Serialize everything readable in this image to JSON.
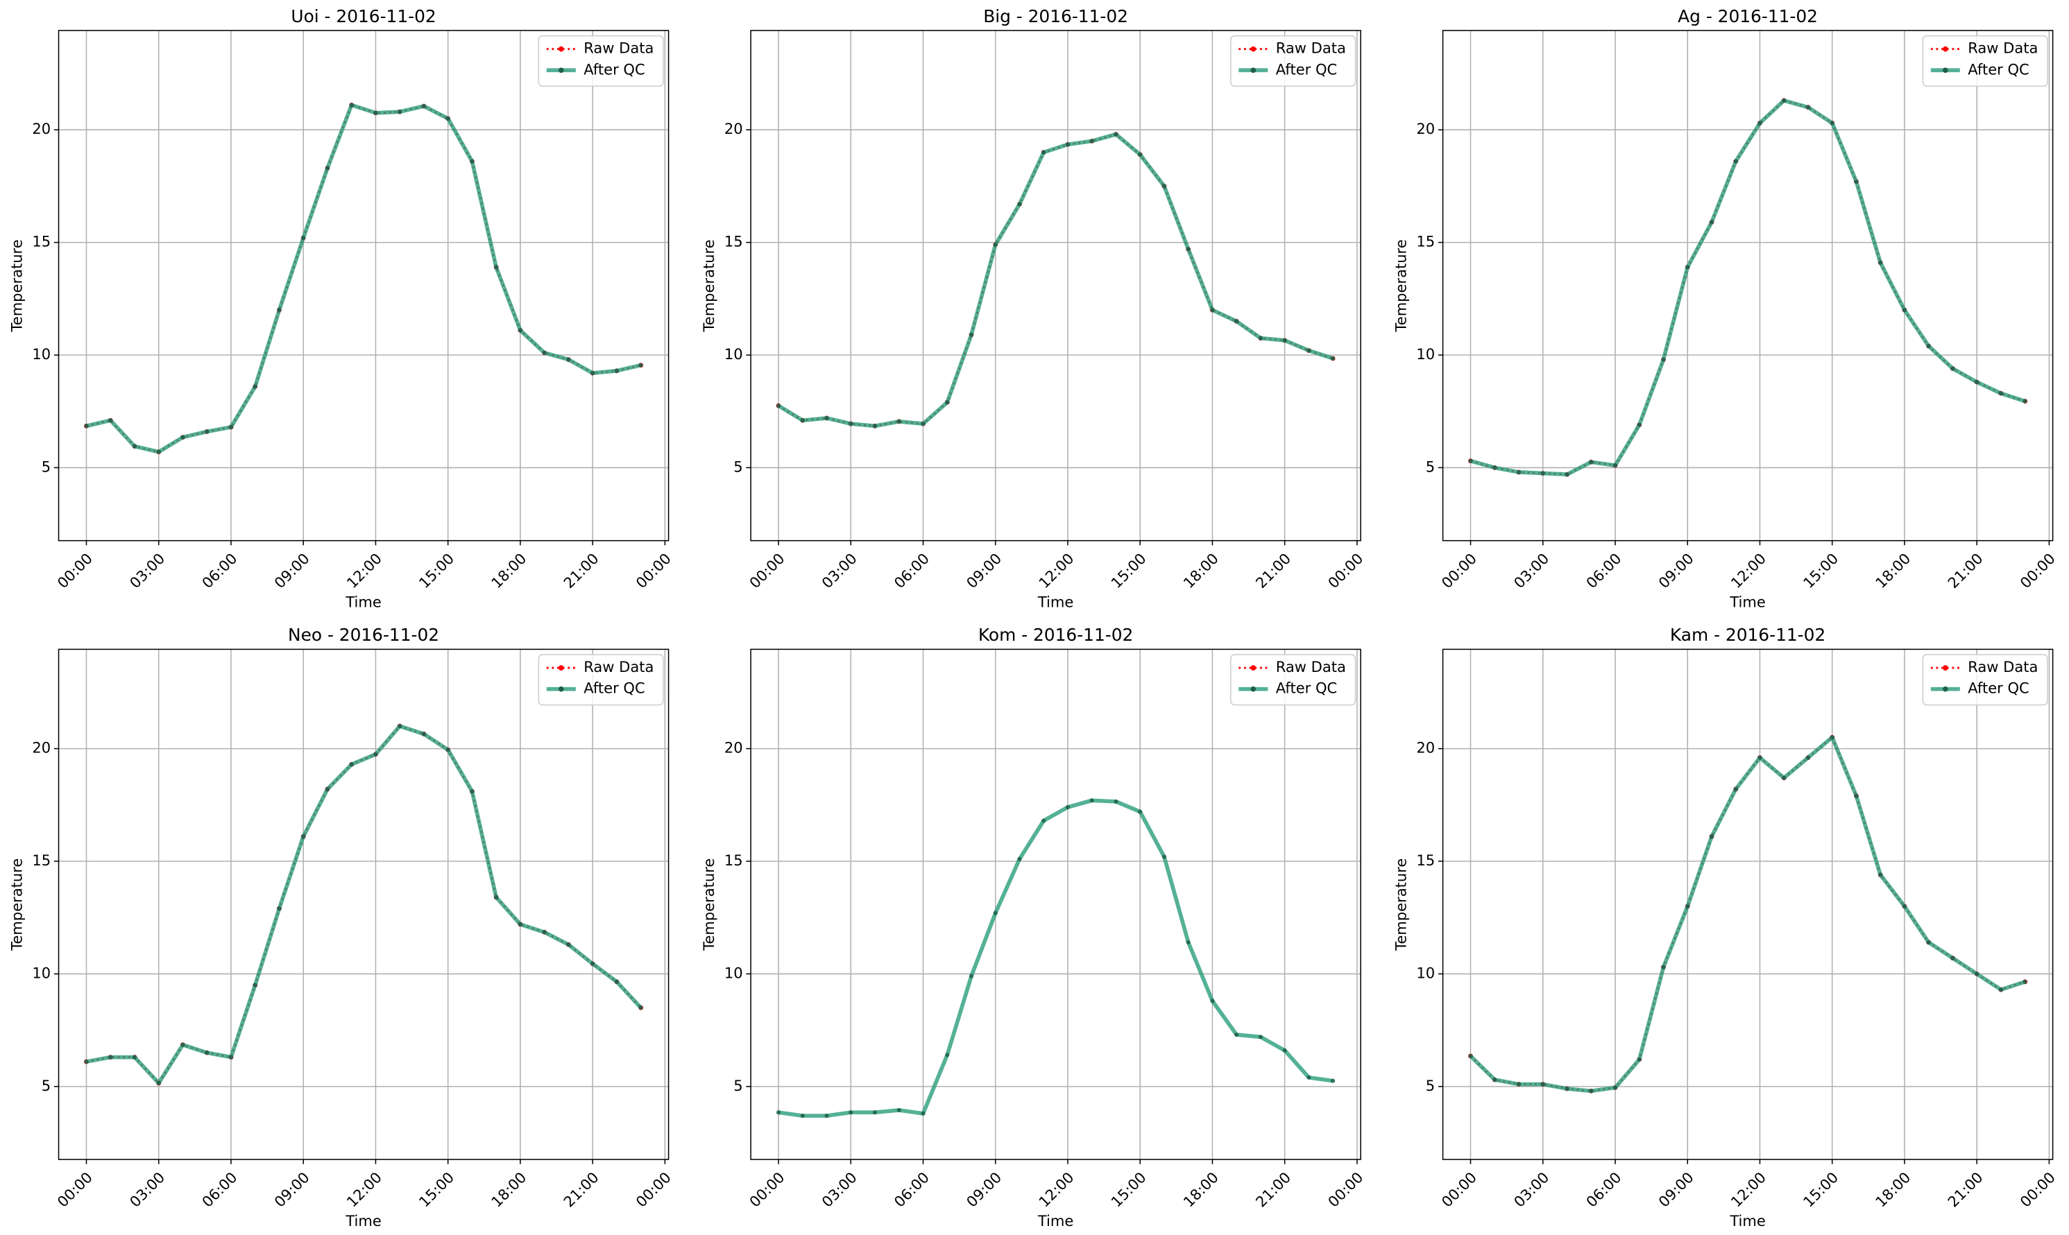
{
  "chart_data": [
    {
      "type": "line",
      "title": "Uoi - 2016-11-02",
      "xlabel": "Time",
      "ylabel": "Temperature",
      "x": [
        0,
        1,
        2,
        3,
        4,
        5,
        6,
        7,
        8,
        9,
        10,
        11,
        12,
        13,
        14,
        15,
        16,
        17,
        18,
        19,
        20,
        21,
        22,
        23
      ],
      "xlim": [
        -1.15,
        24.15
      ],
      "xticks": [
        {
          "value": 0,
          "label": "00:00"
        },
        {
          "value": 3,
          "label": "03:00"
        },
        {
          "value": 6,
          "label": "06:00"
        },
        {
          "value": 9,
          "label": "09:00"
        },
        {
          "value": 12,
          "label": "12:00"
        },
        {
          "value": 15,
          "label": "15:00"
        },
        {
          "value": 18,
          "label": "18:00"
        },
        {
          "value": 21,
          "label": "21:00"
        },
        {
          "value": 24,
          "label": "00:00"
        }
      ],
      "ylim": [
        1.76,
        24.41
      ],
      "yticks": [
        5,
        10,
        15,
        20
      ],
      "grid": true,
      "legend": "upper right",
      "series": [
        {
          "name": "Raw Data",
          "color": "#ff0000",
          "values": [
            6.85,
            7.1,
            5.95,
            5.7,
            6.35,
            6.6,
            6.8,
            8.6,
            12.0,
            15.2,
            18.3,
            21.1,
            20.75,
            20.8,
            21.05,
            20.5,
            18.6,
            13.9,
            11.1,
            10.1,
            9.8,
            9.2,
            9.3,
            9.55
          ]
        },
        {
          "name": "After QC",
          "color": "#2a9d7c",
          "values": [
            6.85,
            7.1,
            5.95,
            5.7,
            6.35,
            6.6,
            6.8,
            8.6,
            12.0,
            15.2,
            18.3,
            21.1,
            20.75,
            20.8,
            21.05,
            20.5,
            18.6,
            13.9,
            11.1,
            10.1,
            9.8,
            9.2,
            9.3,
            9.55
          ]
        }
      ]
    },
    {
      "type": "line",
      "title": "Big - 2016-11-02",
      "xlabel": "Time",
      "ylabel": "Temperature",
      "x": [
        0,
        1,
        2,
        3,
        4,
        5,
        6,
        7,
        8,
        9,
        10,
        11,
        12,
        13,
        14,
        15,
        16,
        17,
        18,
        19,
        20,
        21,
        22,
        23
      ],
      "xlim": [
        -1.15,
        24.15
      ],
      "xticks": [
        {
          "value": 0,
          "label": "00:00"
        },
        {
          "value": 3,
          "label": "03:00"
        },
        {
          "value": 6,
          "label": "06:00"
        },
        {
          "value": 9,
          "label": "09:00"
        },
        {
          "value": 12,
          "label": "12:00"
        },
        {
          "value": 15,
          "label": "15:00"
        },
        {
          "value": 18,
          "label": "18:00"
        },
        {
          "value": 21,
          "label": "21:00"
        },
        {
          "value": 24,
          "label": "00:00"
        }
      ],
      "ylim": [
        1.76,
        24.41
      ],
      "yticks": [
        5,
        10,
        15,
        20
      ],
      "grid": true,
      "legend": "upper right",
      "series": [
        {
          "name": "Raw Data",
          "color": "#ff0000",
          "values": [
            7.75,
            7.1,
            7.2,
            6.95,
            6.85,
            7.05,
            6.95,
            7.9,
            10.9,
            14.9,
            16.7,
            19.0,
            19.35,
            19.5,
            19.8,
            18.9,
            17.5,
            14.7,
            12.0,
            11.5,
            10.75,
            10.65,
            10.2,
            9.85
          ]
        },
        {
          "name": "After QC",
          "color": "#2a9d7c",
          "values": [
            7.75,
            7.1,
            7.2,
            6.95,
            6.85,
            7.05,
            6.95,
            7.9,
            10.9,
            14.9,
            16.7,
            19.0,
            19.35,
            19.5,
            19.8,
            18.9,
            17.5,
            14.7,
            12.0,
            11.5,
            10.75,
            10.65,
            10.2,
            9.85
          ]
        }
      ]
    },
    {
      "type": "line",
      "title": "Ag - 2016-11-02",
      "xlabel": "Time",
      "ylabel": "Temperature",
      "x": [
        0,
        1,
        2,
        3,
        4,
        5,
        6,
        7,
        8,
        9,
        10,
        11,
        12,
        13,
        14,
        15,
        16,
        17,
        18,
        19,
        20,
        21,
        22,
        23
      ],
      "xlim": [
        -1.15,
        24.15
      ],
      "xticks": [
        {
          "value": 0,
          "label": "00:00"
        },
        {
          "value": 3,
          "label": "03:00"
        },
        {
          "value": 6,
          "label": "06:00"
        },
        {
          "value": 9,
          "label": "09:00"
        },
        {
          "value": 12,
          "label": "12:00"
        },
        {
          "value": 15,
          "label": "15:00"
        },
        {
          "value": 18,
          "label": "18:00"
        },
        {
          "value": 21,
          "label": "21:00"
        },
        {
          "value": 24,
          "label": "00:00"
        }
      ],
      "ylim": [
        1.76,
        24.41
      ],
      "yticks": [
        5,
        10,
        15,
        20
      ],
      "grid": true,
      "legend": "upper right",
      "series": [
        {
          "name": "Raw Data",
          "color": "#ff0000",
          "values": [
            5.3,
            5.0,
            4.8,
            4.75,
            4.7,
            5.25,
            5.1,
            6.9,
            9.8,
            13.9,
            15.9,
            18.6,
            20.3,
            21.3,
            21.0,
            20.3,
            17.7,
            14.1,
            12.0,
            10.4,
            9.4,
            8.8,
            8.3,
            7.95
          ]
        },
        {
          "name": "After QC",
          "color": "#2a9d7c",
          "values": [
            5.3,
            5.0,
            4.8,
            4.75,
            4.7,
            5.25,
            5.1,
            6.9,
            9.8,
            13.9,
            15.9,
            18.6,
            20.3,
            21.3,
            21.0,
            20.3,
            17.7,
            14.1,
            12.0,
            10.4,
            9.4,
            8.8,
            8.3,
            7.95
          ]
        }
      ]
    },
    {
      "type": "line",
      "title": "Neo - 2016-11-02",
      "xlabel": "Time",
      "ylabel": "Temperature",
      "x": [
        0,
        1,
        2,
        3,
        4,
        5,
        6,
        7,
        8,
        9,
        10,
        11,
        12,
        13,
        14,
        15,
        16,
        17,
        18,
        19,
        20,
        21,
        22,
        23
      ],
      "xlim": [
        -1.15,
        24.15
      ],
      "xticks": [
        {
          "value": 0,
          "label": "00:00"
        },
        {
          "value": 3,
          "label": "03:00"
        },
        {
          "value": 6,
          "label": "06:00"
        },
        {
          "value": 9,
          "label": "09:00"
        },
        {
          "value": 12,
          "label": "12:00"
        },
        {
          "value": 15,
          "label": "15:00"
        },
        {
          "value": 18,
          "label": "18:00"
        },
        {
          "value": 21,
          "label": "21:00"
        },
        {
          "value": 24,
          "label": "00:00"
        }
      ],
      "ylim": [
        1.76,
        24.41
      ],
      "yticks": [
        5,
        10,
        15,
        20
      ],
      "grid": true,
      "legend": "upper right",
      "series": [
        {
          "name": "Raw Data",
          "color": "#ff0000",
          "values": [
            6.1,
            6.3,
            6.3,
            5.15,
            6.85,
            6.5,
            6.3,
            9.5,
            12.9,
            16.1,
            18.2,
            19.3,
            19.75,
            21.0,
            20.65,
            19.95,
            18.1,
            13.4,
            12.2,
            11.85,
            11.3,
            10.45,
            9.65,
            8.5
          ]
        },
        {
          "name": "After QC",
          "color": "#2a9d7c",
          "values": [
            6.1,
            6.3,
            6.3,
            5.15,
            6.85,
            6.5,
            6.3,
            9.5,
            12.9,
            16.1,
            18.2,
            19.3,
            19.75,
            21.0,
            20.65,
            19.95,
            18.1,
            13.4,
            12.2,
            11.85,
            11.3,
            10.45,
            9.65,
            8.5
          ]
        }
      ]
    },
    {
      "type": "line",
      "title": "Kom - 2016-11-02",
      "xlabel": "Time",
      "ylabel": "Temperature",
      "x": [
        0,
        1,
        2,
        3,
        4,
        5,
        6,
        7,
        8,
        9,
        10,
        11,
        12,
        13,
        14,
        15,
        16,
        17,
        18,
        19,
        20,
        21,
        22,
        23
      ],
      "xlim": [
        -1.15,
        24.15
      ],
      "xticks": [
        {
          "value": 0,
          "label": "00:00"
        },
        {
          "value": 3,
          "label": "03:00"
        },
        {
          "value": 6,
          "label": "06:00"
        },
        {
          "value": 9,
          "label": "09:00"
        },
        {
          "value": 12,
          "label": "12:00"
        },
        {
          "value": 15,
          "label": "15:00"
        },
        {
          "value": 18,
          "label": "18:00"
        },
        {
          "value": 21,
          "label": "21:00"
        },
        {
          "value": 24,
          "label": "00:00"
        }
      ],
      "ylim": [
        1.76,
        24.41
      ],
      "yticks": [
        5,
        10,
        15,
        20
      ],
      "grid": true,
      "legend": "upper right",
      "series": [
        {
          "name": "Raw Data",
          "color": "#ff0000",
          "values": [
            null,
            null,
            null,
            null,
            null,
            null,
            null,
            null,
            null,
            null,
            null,
            null,
            null,
            null,
            null,
            null,
            null,
            null,
            null,
            null,
            null,
            null,
            null,
            null
          ]
        },
        {
          "name": "After QC",
          "color": "#2a9d7c",
          "values": [
            3.85,
            3.7,
            3.7,
            3.85,
            3.85,
            3.95,
            3.8,
            6.4,
            9.9,
            12.7,
            15.1,
            16.8,
            17.4,
            17.7,
            17.65,
            17.2,
            15.2,
            11.4,
            8.8,
            7.3,
            7.2,
            6.6,
            5.4,
            5.25
          ]
        }
      ]
    },
    {
      "type": "line",
      "title": "Kam - 2016-11-02",
      "xlabel": "Time",
      "ylabel": "Temperature",
      "x": [
        0,
        1,
        2,
        3,
        4,
        5,
        6,
        7,
        8,
        9,
        10,
        11,
        12,
        13,
        14,
        15,
        16,
        17,
        18,
        19,
        20,
        21,
        22,
        23
      ],
      "xlim": [
        -1.15,
        24.15
      ],
      "xticks": [
        {
          "value": 0,
          "label": "00:00"
        },
        {
          "value": 3,
          "label": "03:00"
        },
        {
          "value": 6,
          "label": "06:00"
        },
        {
          "value": 9,
          "label": "09:00"
        },
        {
          "value": 12,
          "label": "12:00"
        },
        {
          "value": 15,
          "label": "15:00"
        },
        {
          "value": 18,
          "label": "18:00"
        },
        {
          "value": 21,
          "label": "21:00"
        },
        {
          "value": 24,
          "label": "00:00"
        }
      ],
      "ylim": [
        1.76,
        24.41
      ],
      "yticks": [
        5,
        10,
        15,
        20
      ],
      "grid": true,
      "legend": "upper right",
      "series": [
        {
          "name": "Raw Data",
          "color": "#ff0000",
          "values": [
            6.35,
            5.3,
            5.1,
            5.1,
            4.9,
            4.8,
            4.95,
            6.2,
            10.3,
            13.0,
            16.1,
            18.2,
            19.6,
            18.7,
            19.6,
            20.5,
            17.9,
            14.4,
            13.0,
            11.4,
            10.7,
            10.0,
            9.3,
            9.65
          ]
        },
        {
          "name": "After QC",
          "color": "#2a9d7c",
          "values": [
            6.35,
            5.3,
            5.1,
            5.1,
            4.9,
            4.8,
            4.95,
            6.2,
            10.3,
            13.0,
            16.1,
            18.2,
            19.6,
            18.7,
            19.6,
            20.5,
            17.9,
            14.4,
            13.0,
            11.4,
            10.7,
            10.0,
            9.3,
            9.65
          ]
        }
      ]
    }
  ]
}
